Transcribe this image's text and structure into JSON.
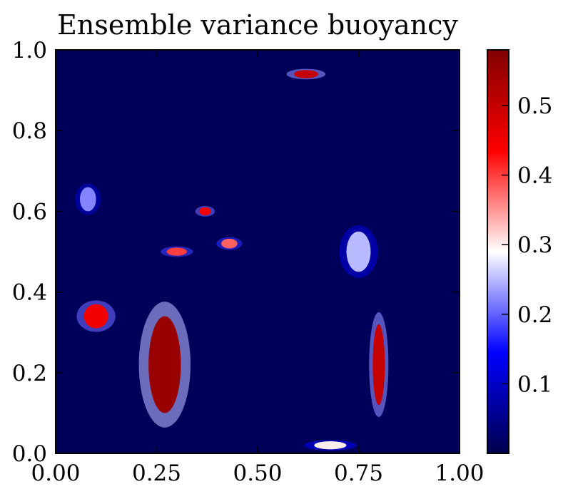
{
  "chart_data": {
    "type": "heatmap",
    "title": "Ensemble variance buoyancy",
    "xlabel": "",
    "ylabel": "",
    "xlim": [
      0.0,
      1.0
    ],
    "ylim": [
      0.0,
      1.0
    ],
    "x_ticks": [
      0.0,
      0.25,
      0.5,
      0.75,
      1.0
    ],
    "x_tick_labels": [
      "0.00",
      "0.25",
      "0.50",
      "0.75",
      "1.00"
    ],
    "y_ticks": [
      0.0,
      0.2,
      0.4,
      0.6,
      0.8,
      1.0
    ],
    "y_tick_labels": [
      "0.0",
      "0.2",
      "0.4",
      "0.6",
      "0.8",
      "1.0"
    ],
    "grid": false,
    "colormap": "seismic",
    "colormap_stops": [
      "#00004d",
      "#0000ff",
      "#ffffff",
      "#ff0000",
      "#7f0000"
    ],
    "background_color": "#00005a",
    "colorbar": {
      "range": [
        0.0,
        0.58
      ],
      "ticks": [
        0.1,
        0.2,
        0.3,
        0.4,
        0.5
      ],
      "tick_labels": [
        "0.1",
        "0.2",
        "0.3",
        "0.4",
        "0.5"
      ]
    },
    "features": [
      {
        "type": "blob",
        "center": [
          0.27,
          0.22
        ],
        "radius": [
          0.04,
          0.12
        ],
        "value": 0.55
      },
      {
        "type": "blob",
        "center": [
          0.1,
          0.34
        ],
        "radius": [
          0.03,
          0.03
        ],
        "value": 0.45
      },
      {
        "type": "blob",
        "center": [
          0.3,
          0.5
        ],
        "radius": [
          0.025,
          0.01
        ],
        "value": 0.4
      },
      {
        "type": "blob",
        "center": [
          0.43,
          0.52
        ],
        "radius": [
          0.02,
          0.012
        ],
        "value": 0.38
      },
      {
        "type": "blob",
        "center": [
          0.37,
          0.6
        ],
        "radius": [
          0.015,
          0.01
        ],
        "value": 0.45
      },
      {
        "type": "blob",
        "center": [
          0.8,
          0.22
        ],
        "radius": [
          0.015,
          0.1
        ],
        "value": 0.5
      },
      {
        "type": "blob",
        "center": [
          0.62,
          0.94
        ],
        "radius": [
          0.03,
          0.01
        ],
        "value": 0.5
      },
      {
        "type": "blob",
        "center": [
          0.68,
          0.02
        ],
        "radius": [
          0.04,
          0.01
        ],
        "value": 0.3
      },
      {
        "type": "blob",
        "center": [
          0.08,
          0.63
        ],
        "radius": [
          0.02,
          0.03
        ],
        "value": 0.22
      },
      {
        "type": "blob",
        "center": [
          0.75,
          0.5
        ],
        "radius": [
          0.03,
          0.05
        ],
        "value": 0.25
      }
    ]
  }
}
